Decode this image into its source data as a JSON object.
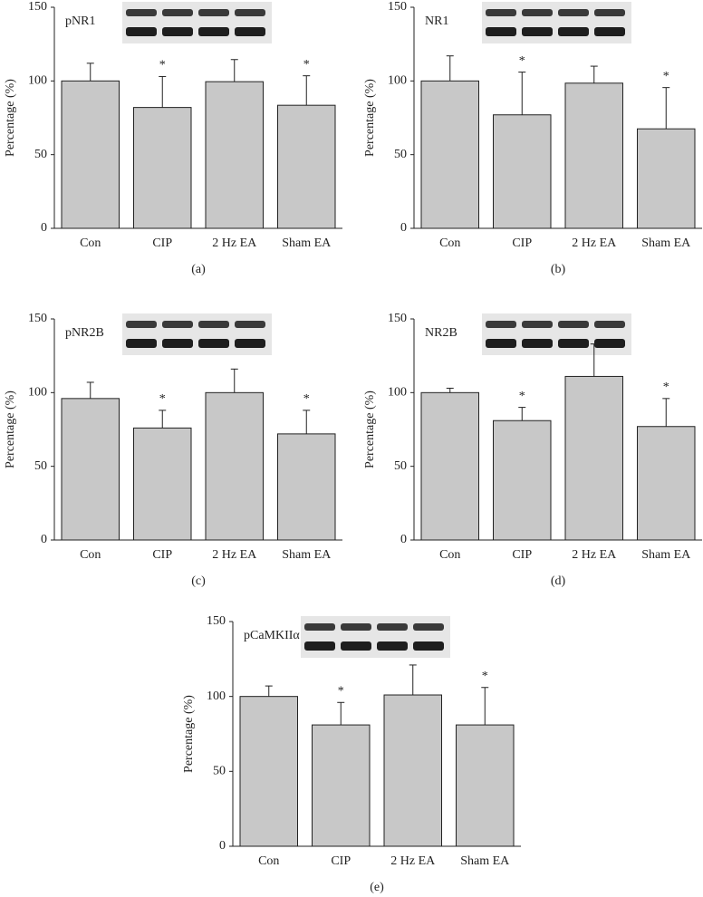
{
  "chart_data": [
    {
      "type": "bar",
      "label": "pNR1",
      "panel": "(a)",
      "ylabel": "Percentage (%)",
      "color": "#c8c8c8",
      "categories": [
        "Con",
        "CIP",
        "2 Hz EA",
        "Sham EA"
      ],
      "values": [
        100,
        82,
        99.5,
        83.5
      ],
      "errors": [
        12,
        21,
        15,
        20
      ],
      "significance": [
        null,
        "*",
        null,
        "*"
      ],
      "ylim": [
        0,
        150
      ],
      "yticks": [
        0,
        50,
        100,
        150
      ]
    },
    {
      "type": "bar",
      "label": "NR1",
      "panel": "(b)",
      "ylabel": "Percentage (%)",
      "color": "#c8c8c8",
      "categories": [
        "Con",
        "CIP",
        "2 Hz EA",
        "Sham EA"
      ],
      "values": [
        100,
        77,
        98.5,
        67.5
      ],
      "errors": [
        17,
        29,
        11.5,
        28
      ],
      "significance": [
        null,
        "*",
        null,
        "*"
      ],
      "ylim": [
        0,
        150
      ],
      "yticks": [
        0,
        50,
        100,
        150
      ]
    },
    {
      "type": "bar",
      "label": "pNR2B",
      "panel": "(c)",
      "ylabel": "Percentage (%)",
      "color": "#c8c8c8",
      "categories": [
        "Con",
        "CIP",
        "2 Hz EA",
        "Sham EA"
      ],
      "values": [
        96,
        76,
        100,
        72
      ],
      "errors": [
        11,
        12,
        16,
        16
      ],
      "significance": [
        null,
        "*",
        null,
        "*"
      ],
      "ylim": [
        0,
        150
      ],
      "yticks": [
        0,
        50,
        100,
        150
      ]
    },
    {
      "type": "bar",
      "label": "NR2B",
      "panel": "(d)",
      "ylabel": "Percentage (%)",
      "color": "#c8c8c8",
      "categories": [
        "Con",
        "CIP",
        "2 Hz EA",
        "Sham EA"
      ],
      "values": [
        100,
        81,
        111,
        77
      ],
      "errors": [
        3,
        9,
        22,
        19
      ],
      "significance": [
        null,
        "*",
        null,
        "*"
      ],
      "ylim": [
        0,
        150
      ],
      "yticks": [
        0,
        50,
        100,
        150
      ]
    },
    {
      "type": "bar",
      "label": "pCaMKIIα",
      "panel": "(e)",
      "ylabel": "Percentage (%)",
      "color": "#c8c8c8",
      "categories": [
        "Con",
        "CIP",
        "2 Hz EA",
        "Sham EA"
      ],
      "values": [
        100,
        81,
        101,
        81
      ],
      "errors": [
        7,
        15,
        20,
        25
      ],
      "significance": [
        null,
        "*",
        null,
        "*"
      ],
      "ylim": [
        0,
        150
      ],
      "yticks": [
        0,
        50,
        100,
        150
      ]
    }
  ]
}
